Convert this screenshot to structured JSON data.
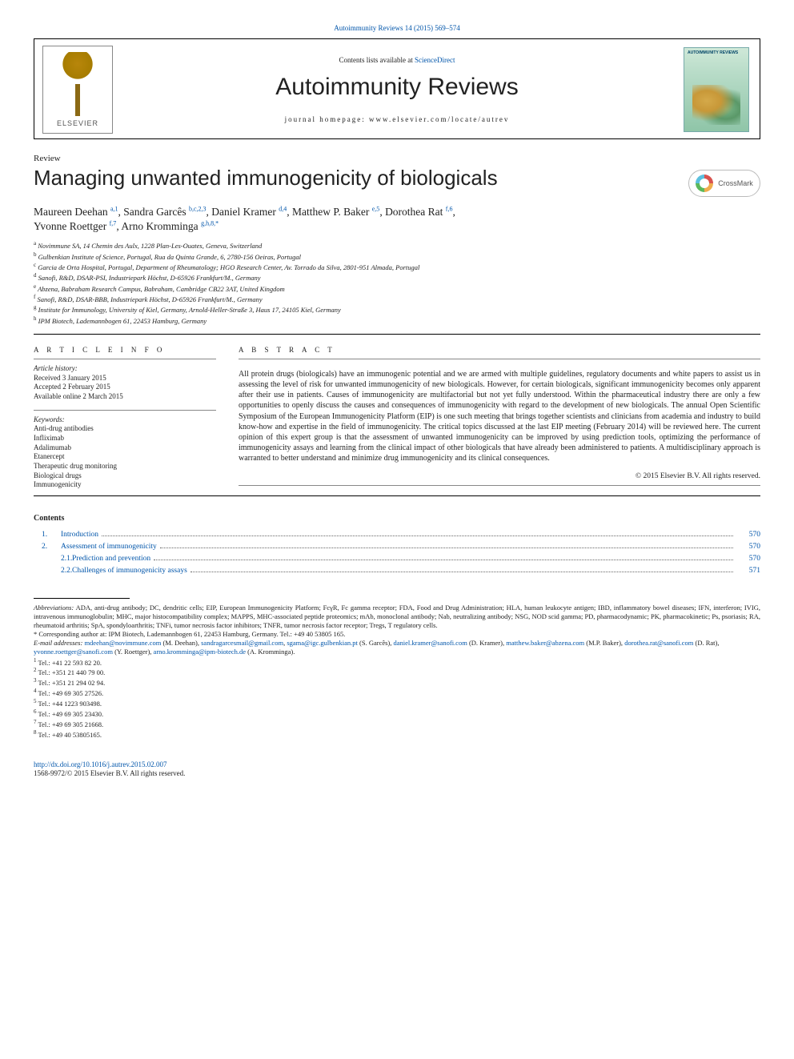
{
  "top_ref": "Autoimmunity Reviews 14 (2015) 569–574",
  "masthead": {
    "contents_prefix": "Contents lists available at ",
    "contents_link": "ScienceDirect",
    "journal": "Autoimmunity Reviews",
    "homepage_prefix": "journal homepage: ",
    "homepage": "www.elsevier.com/locate/autrev",
    "publisher": "ELSEVIER"
  },
  "crossmark_label": "CrossMark",
  "article": {
    "type": "Review",
    "title": "Managing unwanted immunogenicity of biologicals"
  },
  "authors_line1": "Maureen Deehan <sup>a,1</sup>, Sandra Garcês <sup>b,c,2,3</sup>, Daniel Kramer <sup>d,4</sup>, Matthew P. Baker <sup>e,5</sup>, Dorothea Rat <sup>f,6</sup>,",
  "authors_line2": "Yvonne Roettger <sup>f,7</sup>, Arno Kromminga <sup>g,h,8,*</sup>",
  "affiliations": [
    {
      "s": "a",
      "t": "Novimmune SA, 14 Chemin des Aulx, 1228 Plan-Les-Ouates, Geneva, Switzerland"
    },
    {
      "s": "b",
      "t": "Gulbenkian Institute of Science, Portugal, Rua da Quinta Grande, 6, 2780-156 Oeiras, Portugal"
    },
    {
      "s": "c",
      "t": "Garcia de Orta Hospital, Portugal, Department of Rheumatology; HGO Research Center, Av. Torrado da Silva, 2801-951 Almada, Portugal"
    },
    {
      "s": "d",
      "t": "Sanofi, R&D, DSAR-PSI, Industriepark Höchst, D-65926 Frankfurt/M., Germany"
    },
    {
      "s": "e",
      "t": "Abzena, Babraham Research Campus, Babraham, Cambridge CB22 3AT, United Kingdom"
    },
    {
      "s": "f",
      "t": "Sanofi, R&D, DSAR-BBB, Industriepark Höchst, D-65926 Frankfurt/M., Germany"
    },
    {
      "s": "g",
      "t": "Institute for Immunology, University of Kiel, Germany, Arnold-Heller-Straße 3, Haus 17, 24105 Kiel, Germany"
    },
    {
      "s": "h",
      "t": "IPM Biotech, Lademannbogen 61, 22453 Hamburg, Germany"
    }
  ],
  "info": {
    "heading": "A R T I C L E   I N F O",
    "history_label": "Article history:",
    "history": [
      "Received 3 January 2015",
      "Accepted 2 February 2015",
      "Available online 2 March 2015"
    ],
    "keywords_label": "Keywords:",
    "keywords": [
      "Anti-drug antibodies",
      "Infliximab",
      "Adalimumab",
      "Etanercept",
      "Therapeutic drug monitoring",
      "Biological drugs",
      "Immunogenicity"
    ]
  },
  "abstract": {
    "heading": "A B S T R A C T",
    "text": "All protein drugs (biologicals) have an immunogenic potential and we are armed with multiple guidelines, regulatory documents and white papers to assist us in assessing the level of risk for unwanted immunogenicity of new biologicals. However, for certain biologicals, significant immunogenicity becomes only apparent after their use in patients. Causes of immunogenicity are multifactorial but not yet fully understood. Within the pharmaceutical industry there are only a few opportunities to openly discuss the causes and consequences of immunogenicity with regard to the development of new biologicals. The annual Open Scientific Symposium of the European Immunogenicity Platform (EIP) is one such meeting that brings together scientists and clinicians from academia and industry to build know-how and expertise in the field of immunogenicity. The critical topics discussed at the last EIP meeting (February 2014) will be reviewed here. The current opinion of this expert group is that the assessment of unwanted immunogenicity can be improved by using prediction tools, optimizing the performance of immunogenicity assays and learning from the clinical impact of other biologicals that have already been administered to patients. A multidisciplinary approach is warranted to better understand and minimize drug immunogenicity and its clinical consequences.",
    "copyright": "© 2015 Elsevier B.V. All rights reserved."
  },
  "contents": {
    "heading": "Contents",
    "rows": [
      {
        "n": "1.",
        "t": "Introduction",
        "p": "570",
        "sub": false
      },
      {
        "n": "2.",
        "t": "Assessment of immunogenicity",
        "p": "570",
        "sub": false
      },
      {
        "n": "2.1.",
        "t": "Prediction and prevention",
        "p": "570",
        "sub": true
      },
      {
        "n": "2.2.",
        "t": "Challenges of immunogenicity assays",
        "p": "571",
        "sub": true
      }
    ]
  },
  "footnotes": {
    "abbrev_label": "Abbreviations:",
    "abbrev_text": " ADA, anti-drug antibody; DC, dendritic cells; EIP, European Immunogenicity Platform; FcγR, Fc gamma receptor; FDA, Food and Drug Administration; HLA, human leukocyte antigen; IBD, inflammatory bowel diseases; IFN, interferon; IVIG, intravenous immunoglobulin; MHC, major histocompatibility complex; MAPPS, MHC-associated peptide proteomics; mAb, monoclonal antibody; Nab, neutralizing antibody; NSG, NOD scid gamma; PD, pharmacodynamic; PK, pharmacokinetic; Ps, psoriasis; RA, rheumatoid arthritis; SpA, spondyloarthritis; TNFi, tumor necrosis factor inhibitors; TNFR, tumor necrosis factor receptor; Tregs, T regulatory cells.",
    "corresponding": "* Corresponding author at: IPM Biotech, Lademannbogen 61, 22453 Hamburg, Germany. Tel.: +49 40 53805 165.",
    "email_label": "E-mail addresses:",
    "emails": " mdeehan@novimmune.com (M. Deehan), sandragarcesmail@gmail.com, sgama@igc.gulbenkian.pt (S. Garcês), daniel.kramer@sanofi.com (D. Kramer), matthew.baker@abzena.com (M.P. Baker), dorothea.rat@sanofi.com (D. Rat), yvonne.roettger@sanofi.com (Y. Roettger), arno.kromminga@ipm-biotech.de (A. Kromminga).",
    "tels": [
      {
        "s": "1",
        "t": "Tel.: +41 22 593 82 20."
      },
      {
        "s": "2",
        "t": "Tel.: +351 21 440 79 00."
      },
      {
        "s": "3",
        "t": "Tel.: +351 21 294 02 94."
      },
      {
        "s": "4",
        "t": "Tel.: +49 69 305 27526."
      },
      {
        "s": "5",
        "t": "Tel.: +44 1223 903498."
      },
      {
        "s": "6",
        "t": "Tel.: +49 69 305 23430."
      },
      {
        "s": "7",
        "t": "Tel.: +49 69 305 21668."
      },
      {
        "s": "8",
        "t": "Tel.: +49 40 53805165."
      }
    ]
  },
  "bottom": {
    "doi": "http://dx.doi.org/10.1016/j.autrev.2015.02.007",
    "issn_line": "1568-9972/© 2015 Elsevier B.V. All rights reserved."
  }
}
